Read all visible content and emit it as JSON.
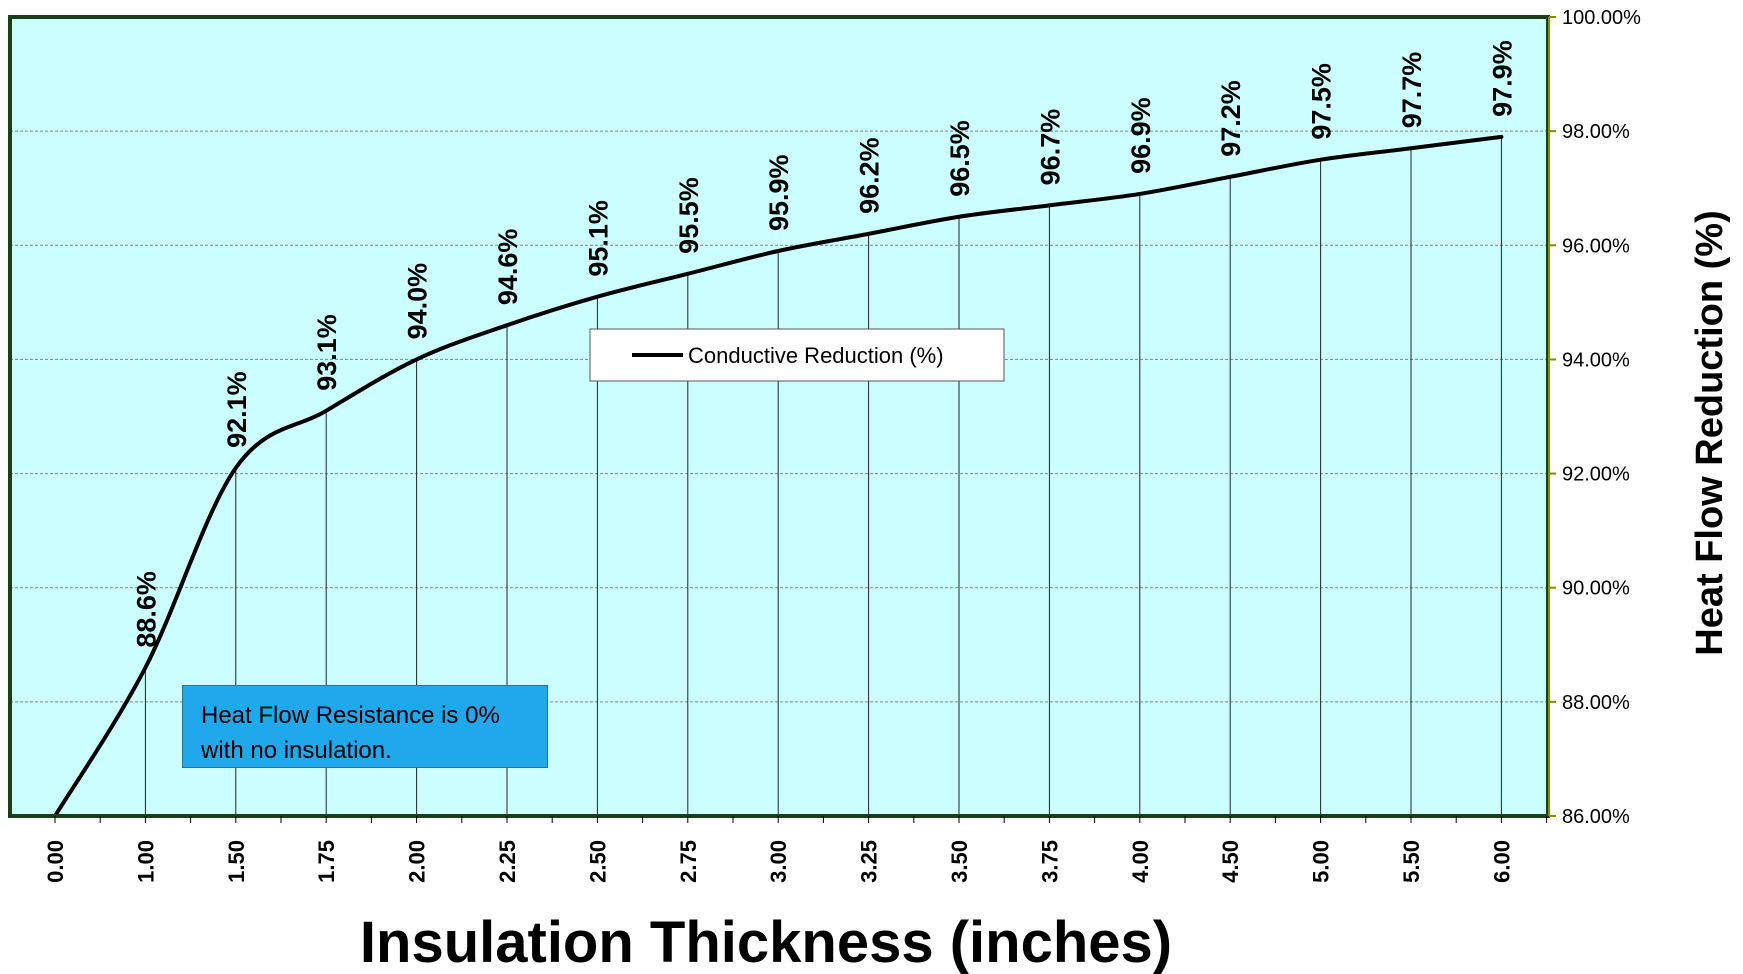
{
  "chart_data": {
    "type": "line",
    "xlabel": "Insulation Thickness (inches)",
    "ylabel": "Heat Flow Reduction (%)",
    "categories": [
      "0.00",
      "1.00",
      "1.50",
      "1.75",
      "2.00",
      "2.25",
      "2.50",
      "2.75",
      "3.00",
      "3.25",
      "3.50",
      "3.75",
      "4.00",
      "4.50",
      "5.00",
      "5.50",
      "6.00"
    ],
    "series": [
      {
        "name": "Conductive Reduction (%)",
        "values": [
          86.0,
          88.6,
          92.1,
          93.1,
          94.0,
          94.6,
          95.1,
          95.5,
          95.9,
          96.2,
          96.5,
          96.7,
          96.9,
          97.2,
          97.5,
          97.7,
          97.9
        ],
        "data_labels": [
          "",
          "88.6%",
          "92.1%",
          "93.1%",
          "94.0%",
          "94.6%",
          "95.1%",
          "95.5%",
          "95.9%",
          "96.2%",
          "96.5%",
          "96.7%",
          "96.9%",
          "97.2%",
          "97.5%",
          "97.7%",
          "97.9%"
        ],
        "color": "#000000"
      }
    ],
    "ylim": [
      86,
      100
    ],
    "y_ticks": [
      "86.00%",
      "88.00%",
      "90.00%",
      "92.00%",
      "94.00%",
      "96.00%",
      "98.00%",
      "100.00%"
    ],
    "y_axis_side": "right",
    "grid": true,
    "legend_position": "center",
    "plot_background": "#ccffff",
    "plot_border_color": "#1a3d1a",
    "annotation": {
      "line1": "Heat Flow Resistance is 0%",
      "line2": "with no insulation.",
      "background": "#1fa8ec"
    }
  }
}
